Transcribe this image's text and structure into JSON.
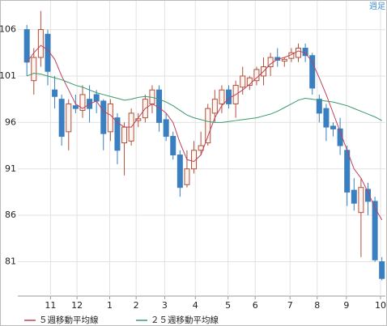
{
  "chart_data": {
    "type": "candlestick",
    "annotation": "週足",
    "x": [
      0,
      1,
      2,
      3,
      4,
      5,
      6,
      7,
      8,
      9,
      10,
      11,
      12,
      13,
      14,
      15,
      16,
      17,
      18,
      19,
      20,
      21,
      22,
      23,
      24,
      25,
      26,
      27,
      28,
      29,
      30,
      31,
      32,
      33,
      34,
      35,
      36,
      37,
      38,
      39,
      40,
      41,
      42,
      43,
      44,
      45,
      46,
      47,
      48,
      49,
      50,
      51
    ],
    "open": [
      106,
      100.5,
      103,
      105.5,
      99.5,
      98.5,
      95,
      97.8,
      97.3,
      98.5,
      99,
      98.3,
      95,
      96.5,
      93.8,
      94,
      96.2,
      96.5,
      98,
      99.5,
      96.3,
      94.5,
      92.5,
      89.3,
      91,
      93,
      93.8,
      97,
      98,
      99.5,
      98,
      99.8,
      100,
      100.5,
      101,
      102,
      103,
      102.6,
      102.9,
      103,
      104,
      103.2,
      98.5,
      97.5,
      95.6,
      95.3,
      93,
      88.7,
      86.3,
      88.8,
      87.5,
      81
    ],
    "high": [
      106.5,
      104,
      108,
      106,
      101,
      99,
      98.5,
      99,
      100,
      100,
      99.5,
      98.5,
      98.5,
      97,
      96,
      97.5,
      97,
      99,
      100,
      100,
      97,
      95,
      93,
      93,
      94,
      95,
      98,
      99.5,
      100,
      100,
      100.5,
      102,
      101,
      102,
      103,
      103.5,
      104,
      103,
      104,
      104.5,
      104.5,
      103.5,
      99,
      98,
      96,
      96.5,
      93.5,
      90,
      90,
      89.5,
      88,
      81.5
    ],
    "low": [
      101,
      99,
      102,
      100,
      97.5,
      93.5,
      93,
      97,
      96.5,
      96,
      97,
      93,
      94,
      91.5,
      90.3,
      93.5,
      95.5,
      96,
      97,
      95,
      94,
      92,
      88,
      89,
      90.5,
      92.5,
      93.5,
      96,
      97,
      97.5,
      96.5,
      99,
      99.5,
      100,
      100,
      101,
      102,
      102,
      102.5,
      102.5,
      102.5,
      99,
      96,
      94,
      94.5,
      92.5,
      87,
      86.5,
      81.5,
      86,
      81,
      79
    ],
    "close": [
      102.5,
      103,
      106,
      101.5,
      98.8,
      94.5,
      98,
      97.5,
      99,
      97.5,
      98.3,
      94.8,
      98,
      93,
      95.5,
      97,
      96.4,
      98.5,
      99.5,
      96,
      94.5,
      92.5,
      89,
      91,
      93,
      93.5,
      97.5,
      98.5,
      99.5,
      98,
      100,
      101,
      100.8,
      101.7,
      102,
      103,
      102.7,
      102.8,
      103.5,
      104,
      103.2,
      99.7,
      97,
      95.5,
      95.3,
      93.5,
      88.5,
      87.3,
      89,
      87.5,
      81.2,
      79.2
    ],
    "up_color": "#b0503a",
    "down_color": "#3a7fc0",
    "series": [
      {
        "name": "５週移動平均線",
        "color": "#c0405a",
        "values": [
          102.5,
          103.5,
          104.3,
          103.8,
          102.8,
          101,
          99.5,
          98,
          97.5,
          98,
          98.3,
          97.2,
          96.8,
          96,
          95.5,
          95.5,
          96.5,
          97.5,
          98,
          97.6,
          97,
          96,
          93.8,
          92,
          91.8,
          92.5,
          94.5,
          96.5,
          97.8,
          98.6,
          99,
          99.5,
          100.1,
          100.8,
          101.5,
          102.3,
          102.8,
          103,
          103.3,
          103.7,
          103.5,
          102.5,
          100.8,
          99,
          97,
          95,
          93,
          91,
          90,
          88.5,
          86.8,
          85.5
        ]
      },
      {
        "name": "２５週移動平均線",
        "color": "#3a9a6a",
        "values": [
          101,
          101.3,
          101.2,
          101,
          100.8,
          100.6,
          100.3,
          100,
          99.8,
          99.5,
          99.2,
          99,
          98.8,
          98.6,
          98.4,
          98.5,
          98.7,
          98.8,
          98.7,
          98.5,
          98.2,
          97.8,
          97.3,
          96.8,
          96.5,
          96.3,
          96.1,
          96,
          96,
          96.1,
          96.2,
          96.3,
          96.4,
          96.5,
          96.7,
          96.9,
          97.2,
          97.6,
          98,
          98.4,
          98.6,
          98.5,
          98.4,
          98.3,
          98.2,
          98,
          97.8,
          97.5,
          97.2,
          96.9,
          96.6,
          96.2
        ]
      }
    ],
    "xlim": [
      -1.3,
      51.5
    ],
    "xticks": [
      {
        "value": 3.4,
        "label": "11"
      },
      {
        "value": 7.2,
        "label": "12"
      },
      {
        "value": 11.9,
        "label": "1"
      },
      {
        "value": 15.7,
        "label": "2"
      },
      {
        "value": 19.8,
        "label": "3"
      },
      {
        "value": 24.2,
        "label": "4"
      },
      {
        "value": 28.9,
        "label": "5"
      },
      {
        "value": 32.8,
        "label": "6"
      },
      {
        "value": 37.8,
        "label": "7"
      },
      {
        "value": 41.7,
        "label": "8"
      },
      {
        "value": 45.9,
        "label": "9"
      },
      {
        "value": 50.8,
        "label": "10"
      }
    ],
    "ylim": [
      77.3,
      109.1
    ],
    "yticks": [
      81,
      86,
      91,
      96,
      101,
      106
    ],
    "grid": true
  }
}
